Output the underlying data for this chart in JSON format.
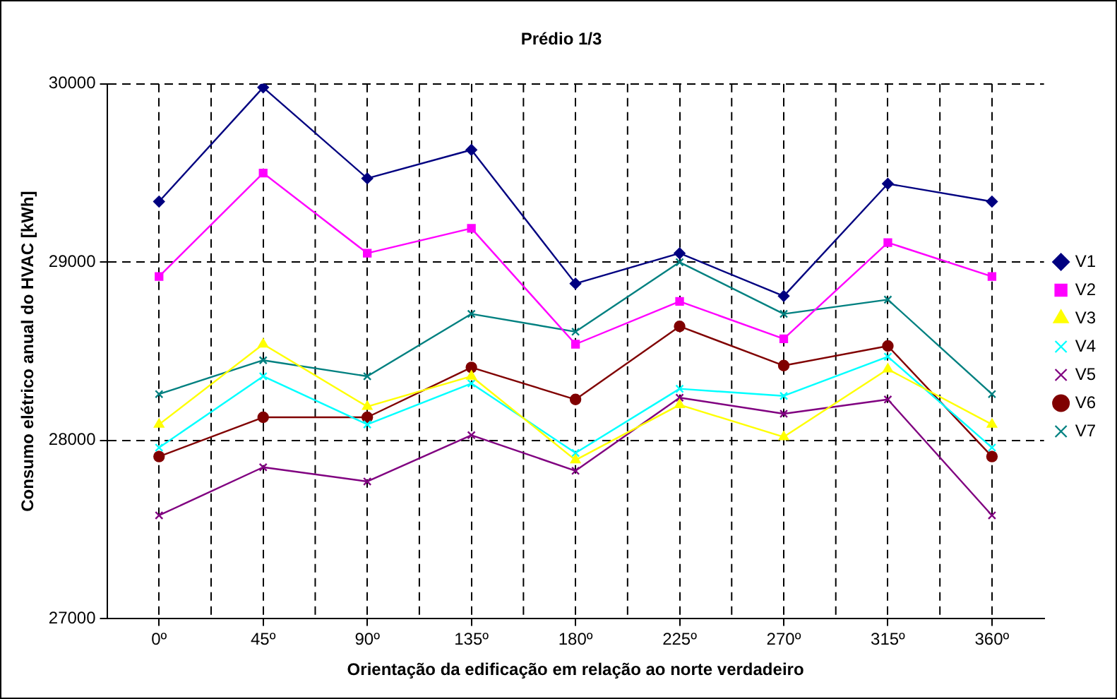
{
  "chart_data": {
    "type": "line",
    "title": "Prédio 1/3",
    "xlabel": "Orientação da edificação em relação ao norte verdadeiro",
    "ylabel": "Consumo elétrico anual do HVAC [kWh]",
    "categories": [
      "0º",
      "45º",
      "90º",
      "135º",
      "180º",
      "225º",
      "270º",
      "315º",
      "360º"
    ],
    "ylim": [
      27000,
      30000
    ],
    "yticks": [
      27000,
      28000,
      29000,
      30000
    ],
    "grid": true,
    "legend": "right",
    "line_style": "solid",
    "series": [
      {
        "name": "V1",
        "color": "#000080",
        "marker": "diamond",
        "values": [
          29340,
          29980,
          29470,
          29630,
          28880,
          29050,
          28810,
          29440,
          29340
        ]
      },
      {
        "name": "V2",
        "color": "#ff00ff",
        "marker": "square",
        "values": [
          28920,
          29500,
          29050,
          29190,
          28540,
          28780,
          28570,
          29110,
          28920
        ]
      },
      {
        "name": "V3",
        "color": "#ffff00",
        "marker": "triangle",
        "values": [
          28090,
          28540,
          28190,
          28360,
          27890,
          28200,
          28020,
          28400,
          28090
        ]
      },
      {
        "name": "V4",
        "color": "#00ffff",
        "marker": "cross",
        "values": [
          27960,
          28360,
          28090,
          28320,
          27930,
          28290,
          28250,
          28470,
          27960
        ]
      },
      {
        "name": "V5",
        "color": "#800080",
        "marker": "cross",
        "values": [
          27580,
          27850,
          27770,
          28030,
          27830,
          28240,
          28150,
          28230,
          27580
        ]
      },
      {
        "name": "V6",
        "color": "#800000",
        "marker": "circle",
        "values": [
          27910,
          28130,
          28130,
          28410,
          28230,
          28640,
          28420,
          28530,
          27910
        ]
      },
      {
        "name": "V7",
        "color": "#008080",
        "marker": "cross",
        "values": [
          28260,
          28450,
          28360,
          28710,
          28610,
          29000,
          28710,
          28790,
          28260
        ]
      }
    ]
  }
}
